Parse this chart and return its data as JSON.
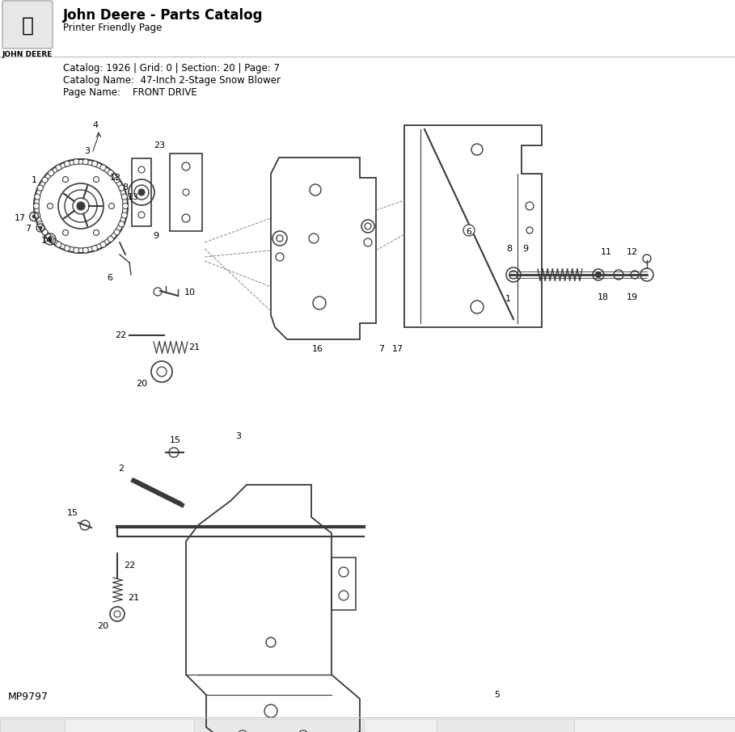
{
  "title": "John Deere - Parts Catalog",
  "subtitle": "Printer Friendly Page",
  "brand": "JOHN DEERE",
  "catalog_info": "Catalog: 1926 | Grid: 0 | Section: 20 | Page: 7",
  "catalog_name": "Catalog Name:  47-Inch 2-Stage Snow Blower",
  "page_name": "Page Name:    FRONT DRIVE",
  "footer_code": "MP9797",
  "bg_color": "#ffffff",
  "diagram_color": "#3a3a3a",
  "text_color": "#000000",
  "gray_line": "#cccccc",
  "logo_bg": "#e8e8e8",
  "logo_fg": "#555555"
}
